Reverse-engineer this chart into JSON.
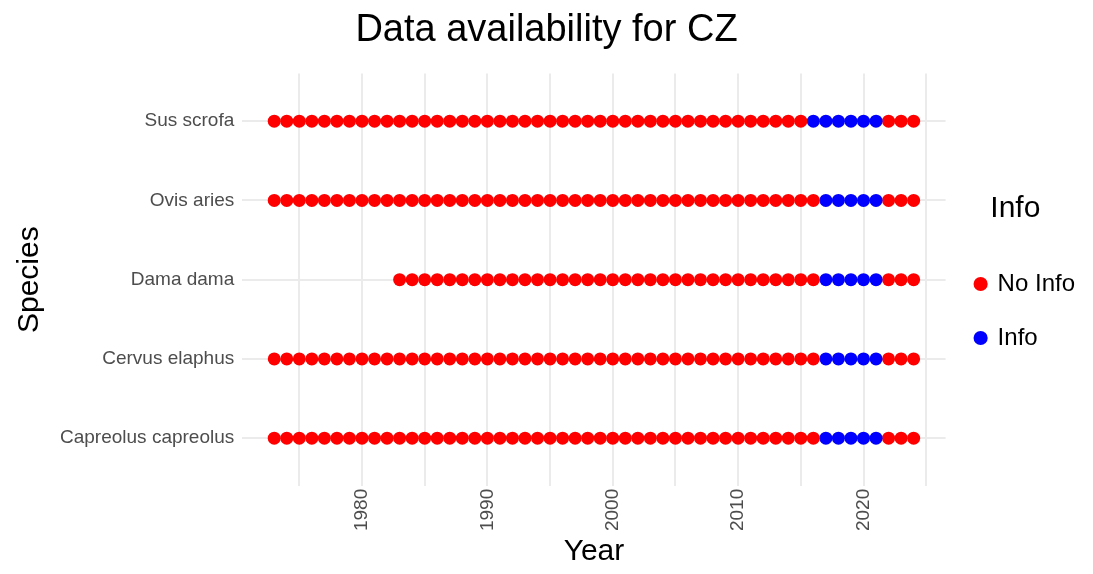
{
  "chart_data": {
    "type": "scatter",
    "orientation": "horizontal",
    "title": "Data availability for CZ",
    "xlabel": "Year",
    "ylabel": "Species",
    "legend_title": "Info",
    "categories": [
      "Sus scrofa",
      "Ovis aries",
      "Dama dama",
      "Cervus elaphus",
      "Capreolus capreolus"
    ],
    "xlim": [
      1970.45,
      2026.55
    ],
    "xticks": [
      {
        "value": 1975,
        "label": null
      },
      1980,
      {
        "value": 1985,
        "label": null
      },
      1990,
      {
        "value": 1995,
        "label": null
      },
      2000,
      {
        "value": 2005,
        "label": null
      },
      2010,
      {
        "value": 2015,
        "label": null
      },
      2020,
      {
        "value": 2025,
        "label": null
      }
    ],
    "grid": true,
    "legend": "right",
    "marker": "circle",
    "series": [
      {
        "name": "No Info",
        "color": "#ff0000",
        "values": [
          1973,
          1973,
          null,
          1973,
          1973
        ]
      },
      {
        "color": "#ff0000",
        "values": [
          1974,
          1974,
          null,
          1974,
          1974
        ]
      },
      {
        "color": "#ff0000",
        "values": [
          1975,
          1975,
          null,
          1975,
          1975
        ]
      },
      {
        "color": "#ff0000",
        "values": [
          1976,
          1976,
          null,
          1976,
          1976
        ]
      },
      {
        "color": "#ff0000",
        "values": [
          1977,
          1977,
          null,
          1977,
          1977
        ]
      },
      {
        "color": "#ff0000",
        "values": [
          1978,
          1978,
          null,
          1978,
          1978
        ]
      },
      {
        "color": "#ff0000",
        "values": [
          1979,
          1979,
          null,
          1979,
          1979
        ]
      },
      {
        "color": "#ff0000",
        "values": [
          1980,
          1980,
          null,
          1980,
          1980
        ]
      },
      {
        "color": "#ff0000",
        "values": [
          1981,
          1981,
          null,
          1981,
          1981
        ]
      },
      {
        "color": "#ff0000",
        "values": [
          1982,
          1982,
          null,
          1982,
          1982
        ]
      },
      {
        "color": "#ff0000",
        "values": [
          1983,
          1983,
          1983,
          1983,
          1983
        ]
      },
      {
        "color": "#ff0000",
        "values": [
          1984,
          1984,
          1984,
          1984,
          1984
        ]
      },
      {
        "color": "#ff0000",
        "values": [
          1985,
          1985,
          1985,
          1985,
          1985
        ]
      },
      {
        "color": "#ff0000",
        "values": [
          1986,
          1986,
          1986,
          1986,
          1986
        ]
      },
      {
        "color": "#ff0000",
        "values": [
          1987,
          1987,
          1987,
          1987,
          1987
        ]
      },
      {
        "color": "#ff0000",
        "values": [
          1988,
          1988,
          1988,
          1988,
          1988
        ]
      },
      {
        "color": "#ff0000",
        "values": [
          1989,
          1989,
          1989,
          1989,
          1989
        ]
      },
      {
        "color": "#ff0000",
        "values": [
          1990,
          1990,
          1990,
          1990,
          1990
        ]
      },
      {
        "color": "#ff0000",
        "values": [
          1991,
          1991,
          1991,
          1991,
          1991
        ]
      },
      {
        "color": "#ff0000",
        "values": [
          1992,
          1992,
          1992,
          1992,
          1992
        ]
      },
      {
        "color": "#ff0000",
        "values": [
          1993,
          1993,
          1993,
          1993,
          1993
        ]
      },
      {
        "color": "#ff0000",
        "values": [
          1994,
          1994,
          1994,
          1994,
          1994
        ]
      },
      {
        "color": "#ff0000",
        "values": [
          1995,
          1995,
          1995,
          1995,
          1995
        ]
      },
      {
        "color": "#ff0000",
        "values": [
          1996,
          1996,
          1996,
          1996,
          1996
        ]
      },
      {
        "color": "#ff0000",
        "values": [
          1997,
          1997,
          1997,
          1997,
          1997
        ]
      },
      {
        "color": "#ff0000",
        "values": [
          1998,
          1998,
          1998,
          1998,
          1998
        ]
      },
      {
        "color": "#ff0000",
        "values": [
          1999,
          1999,
          1999,
          1999,
          1999
        ]
      },
      {
        "color": "#ff0000",
        "values": [
          2000,
          2000,
          2000,
          2000,
          2000
        ]
      },
      {
        "color": "#ff0000",
        "values": [
          2001,
          2001,
          2001,
          2001,
          2001
        ]
      },
      {
        "color": "#ff0000",
        "values": [
          2002,
          2002,
          2002,
          2002,
          2002
        ]
      },
      {
        "color": "#ff0000",
        "values": [
          2003,
          2003,
          2003,
          2003,
          2003
        ]
      },
      {
        "color": "#ff0000",
        "values": [
          2004,
          2004,
          2004,
          2004,
          2004
        ]
      },
      {
        "color": "#ff0000",
        "values": [
          2005,
          2005,
          2005,
          2005,
          2005
        ]
      },
      {
        "color": "#ff0000",
        "values": [
          2006,
          2006,
          2006,
          2006,
          2006
        ]
      },
      {
        "color": "#ff0000",
        "values": [
          2007,
          2007,
          2007,
          2007,
          2007
        ]
      },
      {
        "color": "#ff0000",
        "values": [
          2008,
          2008,
          2008,
          2008,
          2008
        ]
      },
      {
        "color": "#ff0000",
        "values": [
          2009,
          2009,
          2009,
          2009,
          2009
        ]
      },
      {
        "color": "#ff0000",
        "values": [
          2010,
          2010,
          2010,
          2010,
          2010
        ]
      },
      {
        "color": "#ff0000",
        "values": [
          2011,
          2011,
          2011,
          2011,
          2011
        ]
      },
      {
        "color": "#ff0000",
        "values": [
          2012,
          2012,
          2012,
          2012,
          2012
        ]
      },
      {
        "color": "#ff0000",
        "values": [
          2013,
          2013,
          2013,
          2013,
          2013
        ]
      },
      {
        "color": "#ff0000",
        "values": [
          2014,
          2014,
          2014,
          2014,
          2014
        ]
      },
      {
        "color": "#ff0000",
        "values": [
          2015,
          2015,
          2015,
          2015,
          2015
        ]
      },
      {
        "color": "#ff0000",
        "values": [
          null,
          2016,
          2016,
          2016,
          2016
        ]
      },
      {
        "name": "Info",
        "color": "#0000ff",
        "values": [
          2016,
          null,
          null,
          null,
          null
        ]
      },
      {
        "color": "#0000ff",
        "values": [
          2017,
          2017,
          2017,
          2017,
          2017
        ]
      },
      {
        "color": "#0000ff",
        "values": [
          2018,
          2018,
          2018,
          2018,
          2018
        ]
      },
      {
        "color": "#0000ff",
        "values": [
          2019,
          2019,
          2019,
          2019,
          2019
        ]
      },
      {
        "color": "#0000ff",
        "values": [
          2020,
          2020,
          2020,
          2020,
          2020
        ]
      },
      {
        "color": "#0000ff",
        "values": [
          2021,
          2021,
          2021,
          2021,
          2021
        ]
      },
      {
        "color": "#ff0000",
        "values": [
          2022,
          2022,
          2022,
          2022,
          2022
        ]
      },
      {
        "color": "#ff0000",
        "values": [
          2023,
          2023,
          2023,
          2023,
          2023
        ]
      },
      {
        "color": "#ff0000",
        "values": [
          2024,
          2024,
          2024,
          2024,
          2024
        ]
      }
    ]
  }
}
